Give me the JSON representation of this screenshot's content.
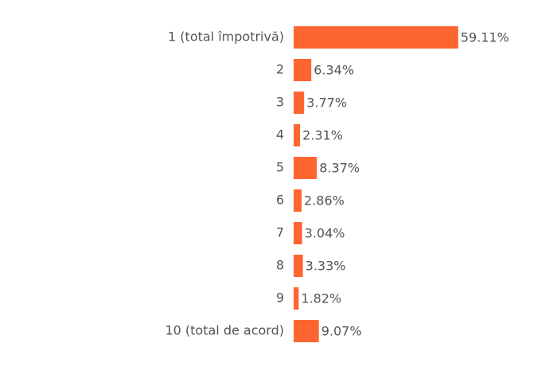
{
  "chart_data": {
    "type": "bar",
    "orientation": "horizontal",
    "categories": [
      "1 (total împotrivă)",
      "2",
      "3",
      "4",
      "5",
      "6",
      "7",
      "8",
      "9",
      "10 (total de acord)"
    ],
    "values": [
      59.11,
      6.34,
      3.77,
      2.31,
      8.37,
      2.86,
      3.04,
      3.33,
      1.82,
      9.07
    ],
    "value_labels": [
      "59.11%",
      "6.34%",
      "3.77%",
      "2.31%",
      "8.37%",
      "2.86%",
      "3.04%",
      "3.33%",
      "1.82%",
      "9.07%"
    ],
    "color": "#fe6631"
  }
}
